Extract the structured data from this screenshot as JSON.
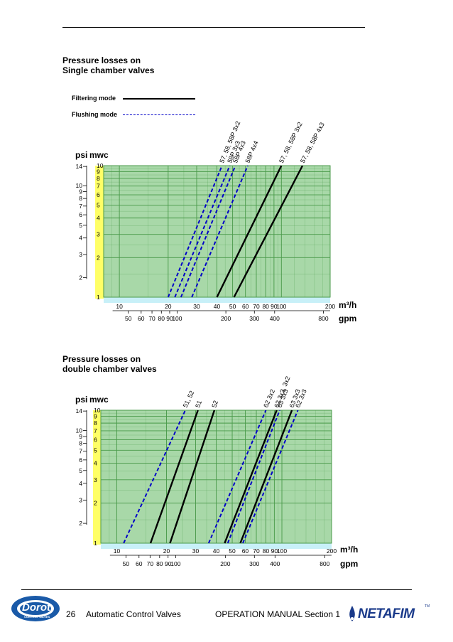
{
  "page": {
    "number": "26",
    "footer_left": "Automatic Control Valves",
    "footer_right": "OPERATION MANUAL Section 1",
    "logo_left": "Dorot",
    "logo_left_sub": "CONTROL VALVES",
    "logo_right": "NETAFIM",
    "logo_right_tm": "TM"
  },
  "legend": {
    "filtering": "Filtering mode",
    "flushing": "Flushing mode"
  },
  "colors": {
    "plot_bg": "#a8d8a8",
    "grid": "#4a9a4a",
    "yellow": "#ffff66",
    "cyan": "#c8f0f8",
    "flushing": "#0000c8",
    "filtering": "#000000"
  },
  "chart_data": [
    {
      "type": "line",
      "title_line1": "Pressure losses on",
      "title_line2": "Single chamber valves",
      "ylabel_psi": "psi",
      "ylabel_mwc": "mwc",
      "xunit_m3h": "m³/h",
      "xunit_gpm": "gpm",
      "xlim_m3h": [
        8,
        200
      ],
      "ylim_mwc": [
        1,
        10
      ],
      "psi_ticks": [
        "14",
        "10",
        "9",
        "8",
        "7",
        "6",
        "5",
        "4",
        "3",
        "2"
      ],
      "mwc_ticks": [
        "10",
        "9",
        "8",
        "7",
        "6",
        "5",
        "4",
        "3",
        "2",
        "1"
      ],
      "m3h_ticks": [
        "10",
        "20",
        "30",
        "40",
        "50",
        "60",
        "70",
        "80",
        "90",
        "100",
        "200"
      ],
      "gpm_ticks": [
        "50",
        "60",
        "70",
        "80",
        "90",
        "100",
        "200",
        "300",
        "400",
        "800"
      ],
      "series": [
        {
          "name": "57, 58, 58P 3x2",
          "mode": "flushing",
          "points": [
            [
              20,
              1
            ],
            [
              43,
              10
            ]
          ]
        },
        {
          "name": "58P 3x3",
          "mode": "flushing",
          "points": [
            [
              22,
              1
            ],
            [
              48,
              10
            ]
          ]
        },
        {
          "name": "58P 4x3",
          "mode": "flushing",
          "points": [
            [
              24,
              1
            ],
            [
              52,
              10
            ]
          ]
        },
        {
          "name": "58P 4x4",
          "mode": "flushing",
          "points": [
            [
              28,
              1
            ],
            [
              62,
              10
            ]
          ]
        },
        {
          "name": "57, 58, 58P 3x2",
          "mode": "filtering",
          "points": [
            [
              40,
              1
            ],
            [
              100,
              10
            ]
          ]
        },
        {
          "name": "57, 58, 58P 4x3",
          "mode": "filtering",
          "points": [
            [
              51,
              1
            ],
            [
              135,
              10
            ]
          ]
        }
      ]
    },
    {
      "type": "line",
      "title_line1": "Pressure losses on",
      "title_line2": "double chamber valves",
      "ylabel_psi": "psi",
      "ylabel_mwc": "mwc",
      "xunit_m3h": "m³/h",
      "xunit_gpm": "gpm",
      "xlim_m3h": [
        8,
        200
      ],
      "ylim_mwc": [
        1,
        10
      ],
      "psi_ticks": [
        "14",
        "10",
        "9",
        "8",
        "7",
        "6",
        "5",
        "4",
        "3",
        "2"
      ],
      "mwc_ticks": [
        "10",
        "9",
        "8",
        "7",
        "6",
        "5",
        "4",
        "3",
        "2",
        "1"
      ],
      "m3h_ticks": [
        "10",
        "20",
        "30",
        "40",
        "50",
        "60",
        "70",
        "80",
        "90",
        "100",
        "200"
      ],
      "gpm_ticks": [
        "50",
        "60",
        "70",
        "80",
        "90",
        "100",
        "200",
        "300",
        "400",
        "800"
      ],
      "series": [
        {
          "name": "51, 52",
          "mode": "flushing",
          "points": [
            [
              11,
              1
            ],
            [
              26,
              10
            ]
          ]
        },
        {
          "name": "51",
          "mode": "filtering",
          "points": [
            [
              16,
              1
            ],
            [
              31,
              10
            ]
          ]
        },
        {
          "name": "52",
          "mode": "filtering",
          "points": [
            [
              21,
              1
            ],
            [
              39,
              10
            ]
          ]
        },
        {
          "name": "62 3x2",
          "mode": "flushing",
          "points": [
            [
              36,
              1
            ],
            [
              80,
              10
            ]
          ]
        },
        {
          "name": "62 3x3, 3x2",
          "mode": "filtering",
          "points": [
            [
              45,
              1
            ],
            [
              93,
              10
            ]
          ]
        },
        {
          "name": "63 3x3",
          "mode": "flushing",
          "points": [
            [
              47,
              1
            ],
            [
              97,
              10
            ]
          ]
        },
        {
          "name": "63 3x3",
          "mode": "filtering",
          "points": [
            [
              56,
              1
            ],
            [
              115,
              10
            ]
          ]
        },
        {
          "name": "62 3x3",
          "mode": "flushing",
          "points": [
            [
              58,
              1
            ],
            [
              125,
              10
            ]
          ]
        }
      ]
    }
  ]
}
